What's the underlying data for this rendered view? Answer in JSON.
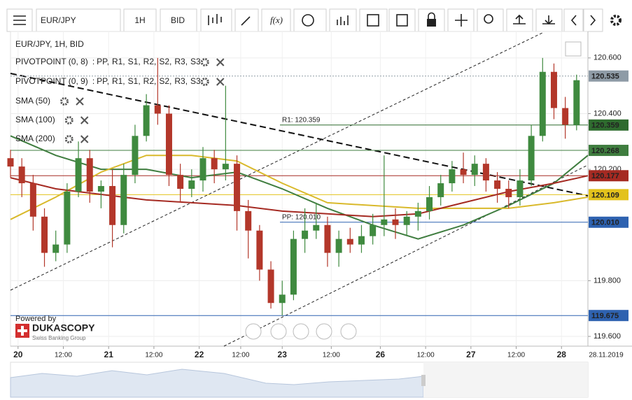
{
  "toolbar": {
    "symbol": "EUR/JPY",
    "period": "1H",
    "side": "BID",
    "fx": "f(x)"
  },
  "branding": {
    "powered": "Powered by",
    "brand": "DUKASCOPY",
    "tagline": "Swiss Banking Group"
  },
  "chart_data": {
    "type": "candlestick",
    "title": "EUR/JPY, 1H, BID",
    "x": [
      0,
      3,
      6,
      9,
      12,
      15,
      18,
      21,
      24,
      27,
      30,
      33,
      36,
      39,
      42,
      45,
      48,
      51,
      54,
      57,
      60,
      63,
      66,
      69,
      72,
      75,
      78,
      81,
      84,
      87,
      90,
      93,
      96,
      99,
      102,
      105,
      108,
      111,
      114,
      117,
      120,
      123,
      126,
      129,
      132,
      135,
      138,
      141,
      144,
      147,
      150
    ],
    "open": [
      120.24,
      120.21,
      120.15,
      120.03,
      119.9,
      119.93,
      120.12,
      120.24,
      120.12,
      120.14,
      120.0,
      120.18,
      120.32,
      120.43,
      120.4,
      120.18,
      120.13,
      120.16,
      120.24,
      120.2,
      120.22,
      120.05,
      119.98,
      119.84,
      119.72,
      119.75,
      119.95,
      119.98,
      120.0,
      119.9,
      119.95,
      119.93,
      119.96,
      120.0,
      120.02,
      120.0,
      120.03,
      120.05,
      120.1,
      120.15,
      120.2,
      120.18,
      120.22,
      120.16,
      120.13,
      120.1,
      120.16,
      120.32,
      120.55,
      120.42,
      120.36
    ],
    "high": [
      120.27,
      120.24,
      120.18,
      120.06,
      119.98,
      120.15,
      120.3,
      120.27,
      120.16,
      120.2,
      120.22,
      120.36,
      120.47,
      120.6,
      120.43,
      120.22,
      120.2,
      120.28,
      120.27,
      120.5,
      120.25,
      120.09,
      120.0,
      119.87,
      119.8,
      119.98,
      120.06,
      120.08,
      120.03,
      119.98,
      119.99,
      120.0,
      120.04,
      120.25,
      120.06,
      120.05,
      120.08,
      120.14,
      120.18,
      120.23,
      120.26,
      120.25,
      120.24,
      120.19,
      120.16,
      120.2,
      120.36,
      120.6,
      120.58,
      120.46,
      120.54
    ],
    "low": [
      120.17,
      120.1,
      119.98,
      119.85,
      119.87,
      119.9,
      120.1,
      120.08,
      120.06,
      119.92,
      119.97,
      120.15,
      120.3,
      120.36,
      120.14,
      120.08,
      120.1,
      120.12,
      120.15,
      120.16,
      119.98,
      119.88,
      119.8,
      119.7,
      119.675,
      119.73,
      119.9,
      119.95,
      119.85,
      119.85,
      119.9,
      119.9,
      119.93,
      119.96,
      119.95,
      119.96,
      119.98,
      120.02,
      120.07,
      120.12,
      120.15,
      120.14,
      120.12,
      120.08,
      120.06,
      120.07,
      120.14,
      120.3,
      120.38,
      120.31,
      120.34
    ],
    "close": [
      120.21,
      120.15,
      120.03,
      119.9,
      119.93,
      120.12,
      120.24,
      120.12,
      120.14,
      120.0,
      120.18,
      120.32,
      120.43,
      120.4,
      120.18,
      120.13,
      120.16,
      120.24,
      120.2,
      120.22,
      120.05,
      119.98,
      119.84,
      119.72,
      119.75,
      119.95,
      119.98,
      120.0,
      119.9,
      119.95,
      119.93,
      119.96,
      120.0,
      120.02,
      120.0,
      120.03,
      120.05,
      120.1,
      120.15,
      120.2,
      120.18,
      120.22,
      120.16,
      120.13,
      120.1,
      120.16,
      120.32,
      120.55,
      120.42,
      120.36,
      120.52
    ],
    "up_color": "#3f8a3f",
    "down_color": "#b3372a",
    "xlim": [
      0,
      153
    ],
    "xticks": [
      {
        "value": 2,
        "label": "20"
      },
      {
        "value": 14,
        "label": "12:00"
      },
      {
        "value": 26,
        "label": "21"
      },
      {
        "value": 38,
        "label": "12:00"
      },
      {
        "value": 50,
        "label": "22"
      },
      {
        "value": 61,
        "label": "12:00"
      },
      {
        "value": 72,
        "label": "23"
      },
      {
        "value": 85,
        "label": "12:00"
      },
      {
        "value": 98,
        "label": "26"
      },
      {
        "value": 110,
        "label": "12:00"
      },
      {
        "value": 122,
        "label": "27"
      },
      {
        "value": 134,
        "label": "12:00"
      },
      {
        "value": 146,
        "label": "28"
      }
    ],
    "date_label": "28.11.2019",
    "ylim": [
      119.565,
      120.695
    ],
    "yticks": [
      {
        "value": 119.6,
        "label": "119.600"
      },
      {
        "value": 119.8,
        "label": "119.800"
      },
      {
        "value": 120.2,
        "label": "120.200"
      },
      {
        "value": 120.4,
        "label": "120.400"
      },
      {
        "value": 120.6,
        "label": "120.600"
      }
    ],
    "grid": true,
    "indicators": [
      {
        "name": "PIVOTPOINT (0, 8)",
        "separator": ":",
        "levels": [
          {
            "name": "PP,",
            "color": "#3a78c8"
          },
          {
            "name": "R1,",
            "color": "#2f7d2f"
          },
          {
            "name": "S1,",
            "color": "#c0392b"
          },
          {
            "name": "R2,",
            "color": "#a0322a"
          },
          {
            "name": "S2,",
            "color": "#e67e22"
          },
          {
            "name": "R3,",
            "color": "#8fb82e"
          },
          {
            "name": "S3",
            "color": "#e0b800"
          }
        ]
      },
      {
        "name": "PIVOTPOINT (0, 9)",
        "separator": ":",
        "levels": [
          {
            "name": "PP,",
            "color": "#3a78c8"
          },
          {
            "name": "R1,",
            "color": "#2f7d2f"
          },
          {
            "name": "S1,",
            "color": "#c0392b"
          },
          {
            "name": "R2,",
            "color": "#a0322a"
          },
          {
            "name": "S2,",
            "color": "#e67e22"
          },
          {
            "name": "R3,",
            "color": "#8fb82e"
          },
          {
            "name": "S3",
            "color": "#e0b800"
          }
        ]
      }
    ],
    "series": [
      {
        "name": "SMA (50)",
        "color": "#3f7d3f",
        "x": [
          0,
          12,
          24,
          36,
          48,
          60,
          72,
          84,
          96,
          108,
          120,
          132,
          144,
          153
        ],
        "values": [
          120.32,
          120.25,
          120.2,
          120.2,
          120.17,
          120.19,
          120.13,
          120.06,
          120.0,
          119.95,
          120.0,
          120.07,
          120.15,
          120.25
        ]
      },
      {
        "name": "SMA (100)",
        "color": "#d9b92b",
        "x": [
          0,
          12,
          24,
          36,
          48,
          60,
          72,
          84,
          96,
          108,
          120,
          132,
          144,
          153
        ],
        "values": [
          120.02,
          120.1,
          120.19,
          120.25,
          120.25,
          120.23,
          120.15,
          120.08,
          120.07,
          120.06,
          120.06,
          120.06,
          120.08,
          120.1
        ]
      },
      {
        "name": "SMA (200)",
        "color": "#a52a22",
        "x": [
          0,
          12,
          24,
          36,
          48,
          60,
          72,
          84,
          96,
          108,
          120,
          132,
          144,
          153
        ],
        "values": [
          120.17,
          120.13,
          120.11,
          120.09,
          120.08,
          120.07,
          120.05,
          120.04,
          120.03,
          120.04,
          120.08,
          120.12,
          120.15,
          120.177
        ]
      }
    ],
    "price_lines": [
      {
        "value": 120.535,
        "color": "#8e9ba6"
      },
      {
        "value": 120.359,
        "color": "#2e6b2e",
        "annotation": "R1: 120.359"
      },
      {
        "value": 120.268,
        "color": "#3f7d3f"
      },
      {
        "value": 120.177,
        "color": "#a52a22"
      },
      {
        "value": 120.109,
        "color": "#e3c21c"
      },
      {
        "value": 120.01,
        "label": "120.010",
        "color": "#2e62b0",
        "annotation": "PP: 120.010"
      },
      {
        "value": 119.675,
        "color": "#2e62b0"
      }
    ]
  }
}
